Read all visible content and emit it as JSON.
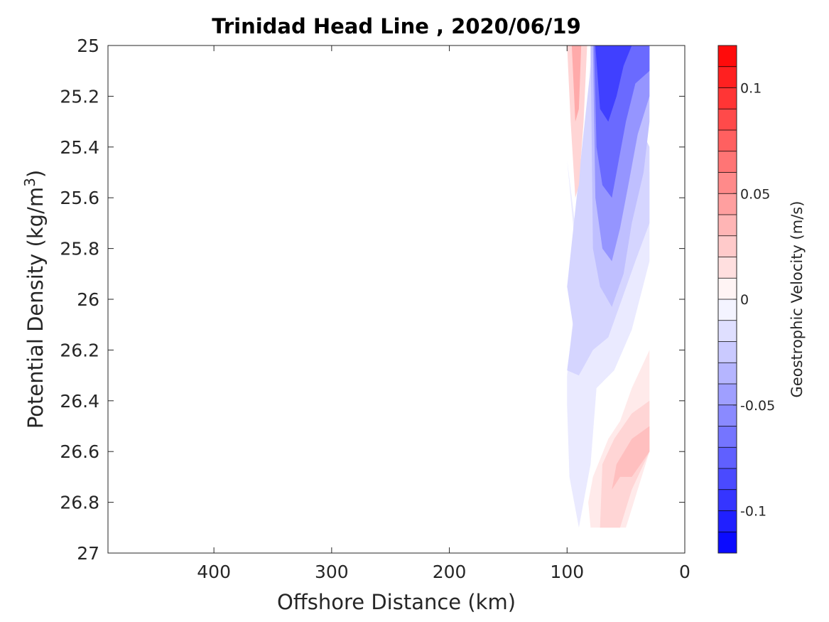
{
  "chart_data": {
    "type": "heatmap",
    "subtype": "filled-contour",
    "title": "Trinidad Head Line , 2020/06/19",
    "xlabel": "Offshore Distance (km)",
    "ylabel": "Potential Density (kg/m",
    "ylabel_sup": "3",
    "ylabel_close": ")",
    "xlim": [
      490,
      0
    ],
    "ylim": [
      25,
      27
    ],
    "x_reversed": true,
    "y_reversed": true,
    "xticks": [
      400,
      300,
      200,
      100,
      0
    ],
    "yticks": [
      25,
      25.2,
      25.4,
      25.6,
      25.8,
      26,
      26.2,
      26.4,
      26.6,
      26.8,
      27
    ],
    "ytick_labels": [
      "25",
      "25.2",
      "25.4",
      "25.6",
      "25.8",
      "26",
      "26.2",
      "26.4",
      "26.6",
      "26.8",
      "27"
    ],
    "colorbar": {
      "label": "Geostrophic Velocity (m/s)",
      "range": [
        -0.12,
        0.12
      ],
      "step": 0.01,
      "ticks": [
        0.1,
        0.05,
        0,
        -0.05,
        -0.1
      ],
      "tick_labels": [
        "0.1",
        "0.05",
        "0",
        "-0.05",
        "-0.1"
      ],
      "colormap": "blue-white-red",
      "color_negative": "#0000ff",
      "color_zero": "#ffffff",
      "color_positive": "#ff0000"
    },
    "grid": false,
    "contour_regions": [
      {
        "name": "neg-outer",
        "level": -0.01,
        "points": [
          [
            100,
            25.45
          ],
          [
            95,
            25.7
          ],
          [
            92,
            25.95
          ],
          [
            100,
            26.3
          ],
          [
            100,
            26.42
          ],
          [
            98,
            26.7
          ],
          [
            90,
            26.9
          ],
          [
            80,
            26.65
          ],
          [
            75,
            26.35
          ],
          [
            60,
            26.28
          ],
          [
            45,
            26.12
          ],
          [
            30,
            25.85
          ],
          [
            30,
            25.5
          ],
          [
            45,
            25.3
          ],
          [
            60,
            25.2
          ],
          [
            74,
            25.0
          ],
          [
            80,
            25.0
          ],
          [
            84,
            25.65
          ],
          [
            92,
            25.75
          ]
        ]
      },
      {
        "name": "neg-1",
        "level": -0.02,
        "points": [
          [
            100,
            25.95
          ],
          [
            95,
            26.1
          ],
          [
            100,
            26.28
          ],
          [
            90,
            26.3
          ],
          [
            78,
            26.2
          ],
          [
            65,
            26.15
          ],
          [
            55,
            26.02
          ],
          [
            42,
            25.85
          ],
          [
            30,
            25.7
          ],
          [
            30,
            25.4
          ],
          [
            45,
            25.25
          ],
          [
            60,
            25.15
          ],
          [
            74,
            25.0
          ],
          [
            78,
            25.0
          ]
        ]
      },
      {
        "name": "neg-2",
        "level": -0.03,
        "points": [
          [
            80,
            25.0
          ],
          [
            78,
            25.8
          ],
          [
            72,
            25.95
          ],
          [
            62,
            26.03
          ],
          [
            52,
            25.9
          ],
          [
            45,
            25.7
          ],
          [
            35,
            25.5
          ],
          [
            30,
            25.3
          ],
          [
            30,
            25.0
          ]
        ]
      },
      {
        "name": "neg-3",
        "level": -0.05,
        "points": [
          [
            78,
            25.0
          ],
          [
            76,
            25.6
          ],
          [
            70,
            25.8
          ],
          [
            62,
            25.85
          ],
          [
            55,
            25.72
          ],
          [
            48,
            25.55
          ],
          [
            40,
            25.35
          ],
          [
            30,
            25.2
          ],
          [
            30,
            25.0
          ]
        ]
      },
      {
        "name": "neg-4",
        "level": -0.07,
        "points": [
          [
            77,
            25.0
          ],
          [
            75,
            25.4
          ],
          [
            70,
            25.55
          ],
          [
            62,
            25.6
          ],
          [
            56,
            25.45
          ],
          [
            50,
            25.3
          ],
          [
            42,
            25.15
          ],
          [
            30,
            25.1
          ],
          [
            30,
            25.0
          ]
        ]
      },
      {
        "name": "neg-5",
        "level": -0.09,
        "points": [
          [
            76,
            25.0
          ],
          [
            72,
            25.25
          ],
          [
            65,
            25.3
          ],
          [
            58,
            25.2
          ],
          [
            52,
            25.08
          ],
          [
            45,
            25.0
          ]
        ]
      },
      {
        "name": "pos-upper",
        "level": 0.02,
        "points": [
          [
            100,
            25.0
          ],
          [
            97,
            25.3
          ],
          [
            93,
            25.6
          ],
          [
            90,
            25.55
          ],
          [
            86,
            25.3
          ],
          [
            83,
            25.0
          ]
        ]
      },
      {
        "name": "pos-upper-core",
        "level": 0.04,
        "points": [
          [
            96,
            25.0
          ],
          [
            93,
            25.3
          ],
          [
            90,
            25.25
          ],
          [
            88,
            25.0
          ]
        ]
      },
      {
        "name": "pos-lower",
        "level": 0.01,
        "points": [
          [
            30,
            26.2
          ],
          [
            45,
            26.35
          ],
          [
            55,
            26.48
          ],
          [
            65,
            26.55
          ],
          [
            78,
            26.7
          ],
          [
            82,
            26.8
          ],
          [
            80,
            26.9
          ],
          [
            70,
            26.9
          ],
          [
            60,
            26.9
          ],
          [
            50,
            26.9
          ],
          [
            40,
            26.75
          ],
          [
            30,
            26.6
          ]
        ]
      },
      {
        "name": "pos-lower-1",
        "level": 0.02,
        "points": [
          [
            30,
            26.4
          ],
          [
            45,
            26.45
          ],
          [
            60,
            26.55
          ],
          [
            70,
            26.65
          ],
          [
            72,
            26.9
          ],
          [
            55,
            26.9
          ],
          [
            45,
            26.75
          ],
          [
            30,
            26.6
          ]
        ]
      },
      {
        "name": "pos-lower-2",
        "level": 0.03,
        "points": [
          [
            30,
            26.5
          ],
          [
            45,
            26.55
          ],
          [
            58,
            26.65
          ],
          [
            62,
            26.75
          ],
          [
            55,
            26.7
          ],
          [
            45,
            26.7
          ],
          [
            30,
            26.6
          ]
        ]
      }
    ]
  }
}
